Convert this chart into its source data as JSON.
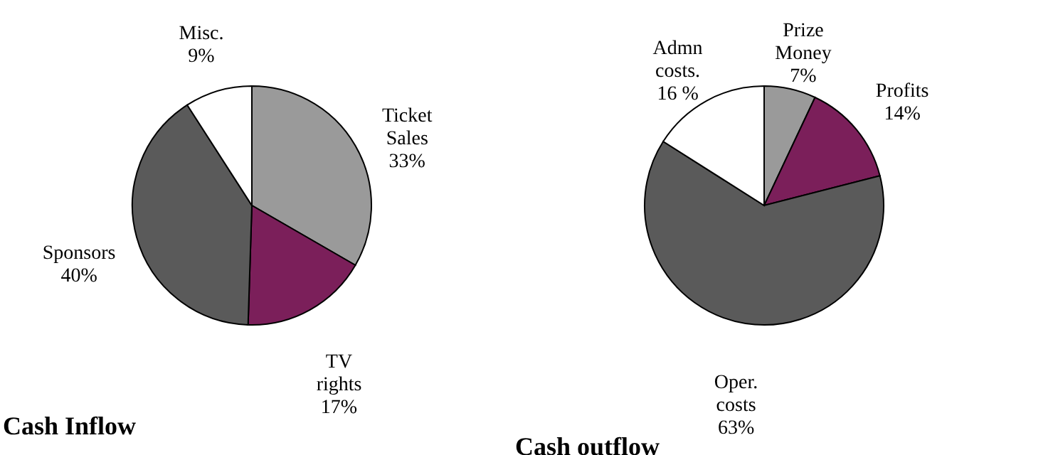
{
  "chart_data": [
    {
      "type": "pie",
      "title": "Cash Inflow",
      "categories": [
        "Ticket Sales",
        "TV rights",
        "Sponsors",
        "Misc."
      ],
      "values": [
        33,
        17,
        40,
        9
      ],
      "value_labels": [
        "33%",
        "17%",
        "40%",
        "9%"
      ],
      "colors": [
        "#9a9a9a",
        "#7b1f5a",
        "#5a5a5a",
        "#ffffff"
      ]
    },
    {
      "type": "pie",
      "title": "Cash outflow",
      "categories": [
        "Prize Money",
        "Profits",
        "Oper. costs",
        "Admn costs."
      ],
      "values": [
        7,
        14,
        63,
        16
      ],
      "value_labels": [
        "7%",
        "14%",
        "63%",
        "16 %"
      ],
      "colors": [
        "#9a9a9a",
        "#7b1f5a",
        "#5a5a5a",
        "#ffffff"
      ]
    }
  ]
}
